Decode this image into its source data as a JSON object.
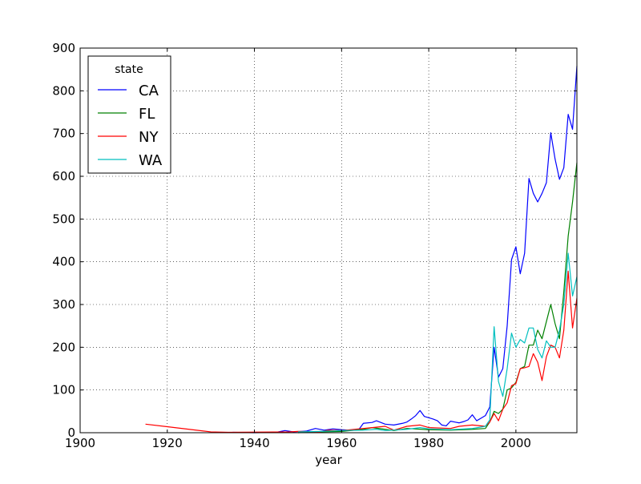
{
  "chart_data": {
    "type": "line",
    "xlabel": "year",
    "ylabel": "",
    "xlim": [
      1900,
      2014
    ],
    "ylim": [
      0,
      900
    ],
    "xticks": [
      1900,
      1920,
      1940,
      1960,
      1980,
      2000
    ],
    "yticks": [
      0,
      100,
      200,
      300,
      400,
      500,
      600,
      700,
      800,
      900
    ],
    "grid": true,
    "legend": {
      "title": "state",
      "position": "upper-left"
    },
    "series": [
      {
        "name": "CA",
        "color": "#0000ff",
        "points": [
          [
            1935,
            1
          ],
          [
            1940,
            0
          ],
          [
            1945,
            1
          ],
          [
            1947,
            5
          ],
          [
            1949,
            2
          ],
          [
            1952,
            4
          ],
          [
            1954,
            10
          ],
          [
            1956,
            6
          ],
          [
            1958,
            9
          ],
          [
            1960,
            7
          ],
          [
            1962,
            6
          ],
          [
            1964,
            8
          ],
          [
            1965,
            22
          ],
          [
            1967,
            24
          ],
          [
            1968,
            28
          ],
          [
            1970,
            20
          ],
          [
            1972,
            18
          ],
          [
            1974,
            22
          ],
          [
            1975,
            25
          ],
          [
            1976,
            32
          ],
          [
            1977,
            40
          ],
          [
            1978,
            52
          ],
          [
            1979,
            38
          ],
          [
            1980,
            35
          ],
          [
            1981,
            32
          ],
          [
            1982,
            28
          ],
          [
            1983,
            18
          ],
          [
            1984,
            16
          ],
          [
            1985,
            27
          ],
          [
            1986,
            25
          ],
          [
            1987,
            23
          ],
          [
            1988,
            26
          ],
          [
            1989,
            30
          ],
          [
            1990,
            42
          ],
          [
            1991,
            28
          ],
          [
            1992,
            34
          ],
          [
            1993,
            40
          ],
          [
            1994,
            60
          ],
          [
            1995,
            200
          ],
          [
            1996,
            130
          ],
          [
            1997,
            150
          ],
          [
            1998,
            250
          ],
          [
            1999,
            405
          ],
          [
            2000,
            435
          ],
          [
            2001,
            372
          ],
          [
            2002,
            420
          ],
          [
            2003,
            595
          ],
          [
            2004,
            560
          ],
          [
            2005,
            540
          ],
          [
            2006,
            560
          ],
          [
            2007,
            585
          ],
          [
            2008,
            702
          ],
          [
            2009,
            640
          ],
          [
            2010,
            593
          ],
          [
            2011,
            620
          ],
          [
            2012,
            745
          ],
          [
            2013,
            710
          ],
          [
            2014,
            858
          ]
        ]
      },
      {
        "name": "FL",
        "color": "#008000",
        "points": [
          [
            1950,
            0
          ],
          [
            1955,
            2
          ],
          [
            1960,
            3
          ],
          [
            1965,
            8
          ],
          [
            1967,
            12
          ],
          [
            1970,
            8
          ],
          [
            1972,
            5
          ],
          [
            1975,
            10
          ],
          [
            1980,
            7
          ],
          [
            1985,
            6
          ],
          [
            1990,
            8
          ],
          [
            1993,
            10
          ],
          [
            1994,
            25
          ],
          [
            1995,
            50
          ],
          [
            1996,
            45
          ],
          [
            1997,
            55
          ],
          [
            1998,
            100
          ],
          [
            1999,
            105
          ],
          [
            2000,
            118
          ],
          [
            2001,
            150
          ],
          [
            2002,
            155
          ],
          [
            2003,
            205
          ],
          [
            2004,
            205
          ],
          [
            2005,
            240
          ],
          [
            2006,
            220
          ],
          [
            2007,
            260
          ],
          [
            2008,
            300
          ],
          [
            2009,
            255
          ],
          [
            2010,
            220
          ],
          [
            2011,
            330
          ],
          [
            2012,
            460
          ],
          [
            2013,
            540
          ],
          [
            2014,
            632
          ]
        ]
      },
      {
        "name": "NY",
        "color": "#ff0000",
        "points": [
          [
            1915,
            20
          ],
          [
            1920,
            14
          ],
          [
            1925,
            8
          ],
          [
            1930,
            2
          ],
          [
            1934,
            1
          ],
          [
            1948,
            2
          ],
          [
            1950,
            3
          ],
          [
            1955,
            2
          ],
          [
            1957,
            6
          ],
          [
            1960,
            5
          ],
          [
            1965,
            10
          ],
          [
            1967,
            12
          ],
          [
            1970,
            15
          ],
          [
            1972,
            6
          ],
          [
            1975,
            15
          ],
          [
            1978,
            18
          ],
          [
            1980,
            12
          ],
          [
            1985,
            10
          ],
          [
            1987,
            15
          ],
          [
            1990,
            18
          ],
          [
            1993,
            15
          ],
          [
            1994,
            25
          ],
          [
            1995,
            45
          ],
          [
            1996,
            28
          ],
          [
            1997,
            55
          ],
          [
            1998,
            70
          ],
          [
            1999,
            110
          ],
          [
            2000,
            115
          ],
          [
            2001,
            150
          ],
          [
            2002,
            152
          ],
          [
            2003,
            155
          ],
          [
            2004,
            185
          ],
          [
            2005,
            165
          ],
          [
            2006,
            122
          ],
          [
            2007,
            178
          ],
          [
            2008,
            205
          ],
          [
            2009,
            200
          ],
          [
            2010,
            175
          ],
          [
            2011,
            240
          ],
          [
            2012,
            378
          ],
          [
            2013,
            245
          ],
          [
            2014,
            315
          ]
        ]
      },
      {
        "name": "WA",
        "color": "#00bfbf",
        "points": [
          [
            1950,
            2
          ],
          [
            1955,
            3
          ],
          [
            1960,
            5
          ],
          [
            1965,
            6
          ],
          [
            1968,
            8
          ],
          [
            1970,
            5
          ],
          [
            1975,
            8
          ],
          [
            1978,
            12
          ],
          [
            1980,
            9
          ],
          [
            1985,
            7
          ],
          [
            1990,
            10
          ],
          [
            1993,
            15
          ],
          [
            1994,
            30
          ],
          [
            1995,
            248
          ],
          [
            1996,
            120
          ],
          [
            1997,
            85
          ],
          [
            1998,
            150
          ],
          [
            1999,
            233
          ],
          [
            2000,
            200
          ],
          [
            2001,
            218
          ],
          [
            2002,
            210
          ],
          [
            2003,
            245
          ],
          [
            2004,
            245
          ],
          [
            2005,
            195
          ],
          [
            2006,
            175
          ],
          [
            2007,
            215
          ],
          [
            2008,
            200
          ],
          [
            2009,
            200
          ],
          [
            2010,
            240
          ],
          [
            2011,
            300
          ],
          [
            2012,
            420
          ],
          [
            2013,
            320
          ],
          [
            2014,
            365
          ]
        ]
      }
    ]
  }
}
